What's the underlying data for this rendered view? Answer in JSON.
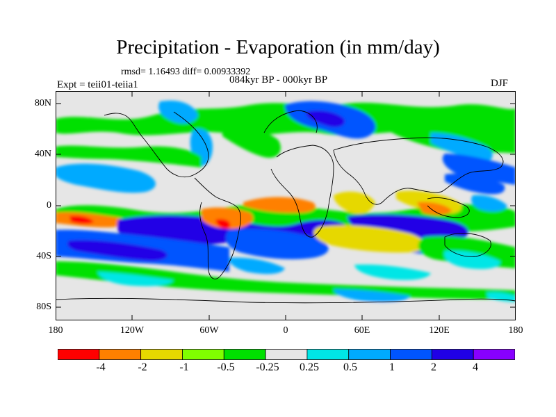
{
  "title": "Precipitation - Evaporation (in mm/day)",
  "stats": "rmsd= 1.16493 diff= 0.00933392",
  "experiment": "Expt = teii01-teiia1",
  "period": "084kyr BP - 000kyr BP",
  "season": "DJF",
  "lat_labels": [
    "80N",
    "40N",
    "0",
    "40S",
    "80S"
  ],
  "lon_labels": [
    "180",
    "120W",
    "60W",
    "0",
    "60E",
    "120E",
    "180"
  ],
  "colorbar": {
    "labels": [
      "-4",
      "-2",
      "-1",
      "-0.5",
      "-0.25",
      "0.25",
      "0.5",
      "1",
      "2",
      "4"
    ],
    "colors": [
      "#ff0000",
      "#ff8000",
      "#e6d800",
      "#80ff00",
      "#00e000",
      "#e6e6e6",
      "#00e6e6",
      "#00aaff",
      "#0055ff",
      "#2000e6",
      "#8800ff"
    ]
  },
  "colors": {
    "land": "#e8e8e8",
    "ocean_background": "#e6e6e6"
  }
}
